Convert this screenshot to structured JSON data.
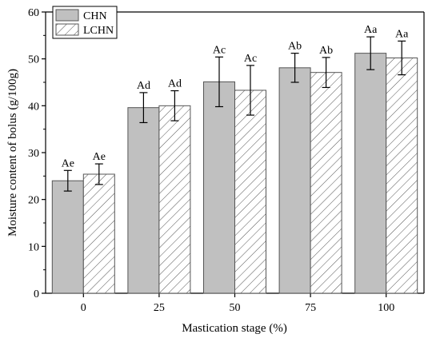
{
  "chart_data": {
    "type": "bar",
    "title": "",
    "xlabel": "Mastication stage (%)",
    "ylabel": "Moisture content of bolus (g/100g)",
    "ylim": [
      0,
      60
    ],
    "yticks": [
      0,
      10,
      20,
      30,
      40,
      50,
      60
    ],
    "categories": [
      "0",
      "25",
      "50",
      "75",
      "100"
    ],
    "grid": false,
    "legend_position": "top-left",
    "series": [
      {
        "name": "CHN",
        "fill": "solid",
        "color": "#c0c0c0",
        "values": [
          24.0,
          39.6,
          45.1,
          48.1,
          51.2
        ],
        "errors": [
          2.2,
          3.2,
          5.3,
          3.1,
          3.5
        ],
        "labels": [
          "Ae",
          "Ad",
          "Ac",
          "Ab",
          "Aa"
        ]
      },
      {
        "name": "LCHN",
        "fill": "hatched",
        "color": "#ffffff",
        "values": [
          25.4,
          40.0,
          43.3,
          47.1,
          50.2
        ],
        "errors": [
          2.2,
          3.2,
          5.3,
          3.2,
          3.6
        ],
        "labels": [
          "Ae",
          "Ad",
          "Ac",
          "Ab",
          "Aa"
        ]
      }
    ]
  }
}
